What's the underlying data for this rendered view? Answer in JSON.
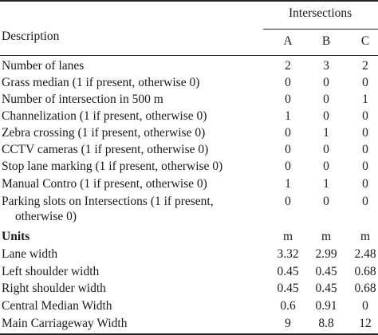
{
  "header": {
    "description": "Description",
    "group": "Intersections",
    "columns": [
      "A",
      "B",
      "C"
    ]
  },
  "rows": [
    {
      "label": "Number of lanes",
      "values": [
        "2",
        "3",
        "2"
      ]
    },
    {
      "label": "Grass median (1 if present, otherwise 0)",
      "values": [
        "0",
        "0",
        "0"
      ]
    },
    {
      "label": "Number of intersection in 500 m",
      "values": [
        "0",
        "0",
        "1"
      ]
    },
    {
      "label": "Channelization (1 if present, otherwise 0)",
      "values": [
        "1",
        "0",
        "0"
      ]
    },
    {
      "label": "Zebra crossing (1 if present, otherwise 0)",
      "values": [
        "0",
        "1",
        "0"
      ]
    },
    {
      "label": "CCTV cameras (1 if present, otherwise 0)",
      "values": [
        "0",
        "0",
        "0"
      ]
    },
    {
      "label": "Stop lane marking (1 if present, otherwise 0)",
      "values": [
        "0",
        "0",
        "0"
      ]
    },
    {
      "label": "Manual Contro (1 if present, otherwise 0)",
      "values": [
        "1",
        "1",
        "0"
      ]
    },
    {
      "label": "Parking slots on Intersections (1 if present,",
      "label2": "otherwise 0)",
      "values": [
        "0",
        "0",
        "0"
      ]
    },
    {
      "label": "Units",
      "values": [
        "m",
        "m",
        "m"
      ],
      "bold": true
    },
    {
      "label": "Lane width",
      "values": [
        "3.32",
        "2.99",
        "2.48"
      ]
    },
    {
      "label": "Left shoulder width",
      "values": [
        "0.45",
        "0.45",
        "0.68"
      ]
    },
    {
      "label": "Right shoulder width",
      "values": [
        "0.45",
        "0.45",
        "0.68"
      ]
    },
    {
      "label": "Central Median Width",
      "values": [
        "0.6",
        "0.91",
        "0"
      ]
    },
    {
      "label": "Main Carriageway Width",
      "values": [
        "9",
        "8.8",
        "12"
      ]
    }
  ]
}
